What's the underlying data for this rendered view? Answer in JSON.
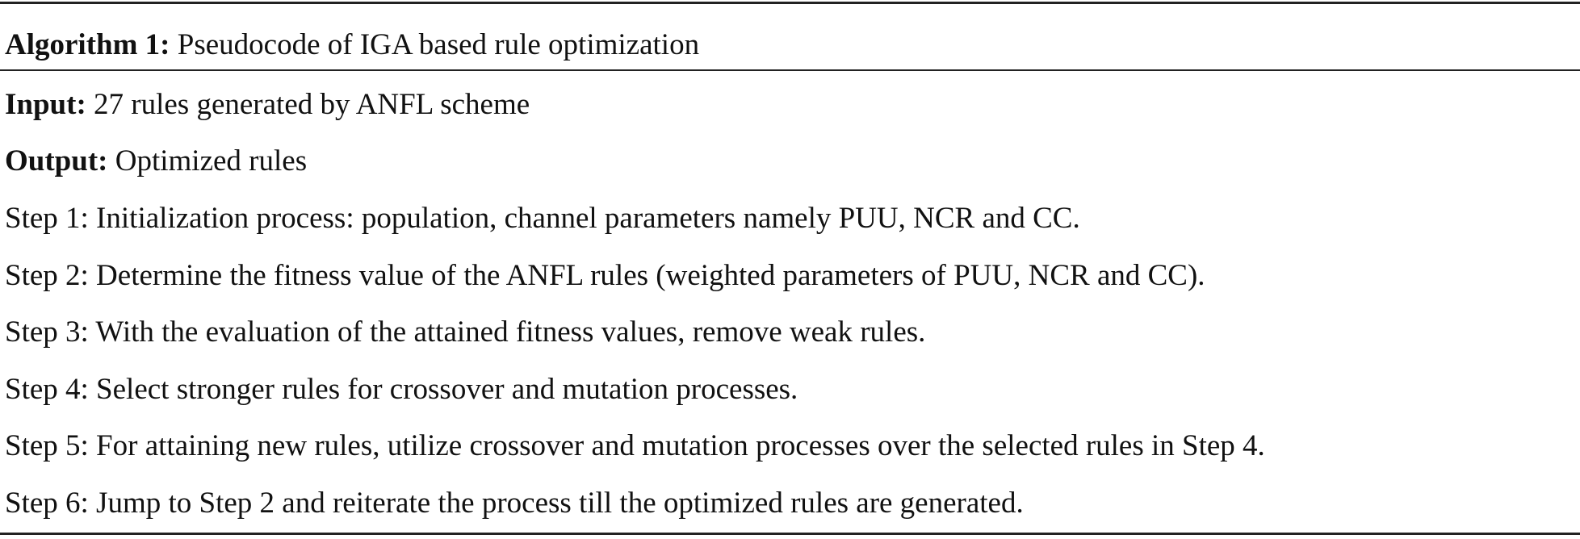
{
  "algorithm": {
    "label": "Algorithm 1:",
    "title": "Pseudocode of IGA based rule optimization",
    "input_label": "Input:",
    "input_text": "27 rules generated by ANFL scheme",
    "output_label": "Output:",
    "output_text": "Optimized rules",
    "steps": [
      "Step 1: Initialization process: population, channel parameters namely PUU, NCR and CC.",
      "Step 2: Determine the fitness value of the ANFL rules (weighted parameters of PUU, NCR and CC).",
      "Step 3: With the evaluation of the attained fitness values, remove weak rules.",
      "Step 4: Select stronger rules for crossover and mutation processes.",
      "Step 5: For attaining new rules, utilize crossover and mutation processes over the selected rules in Step 4.",
      "Step 6: Jump to Step 2 and reiterate the process till the optimized rules are generated."
    ]
  }
}
